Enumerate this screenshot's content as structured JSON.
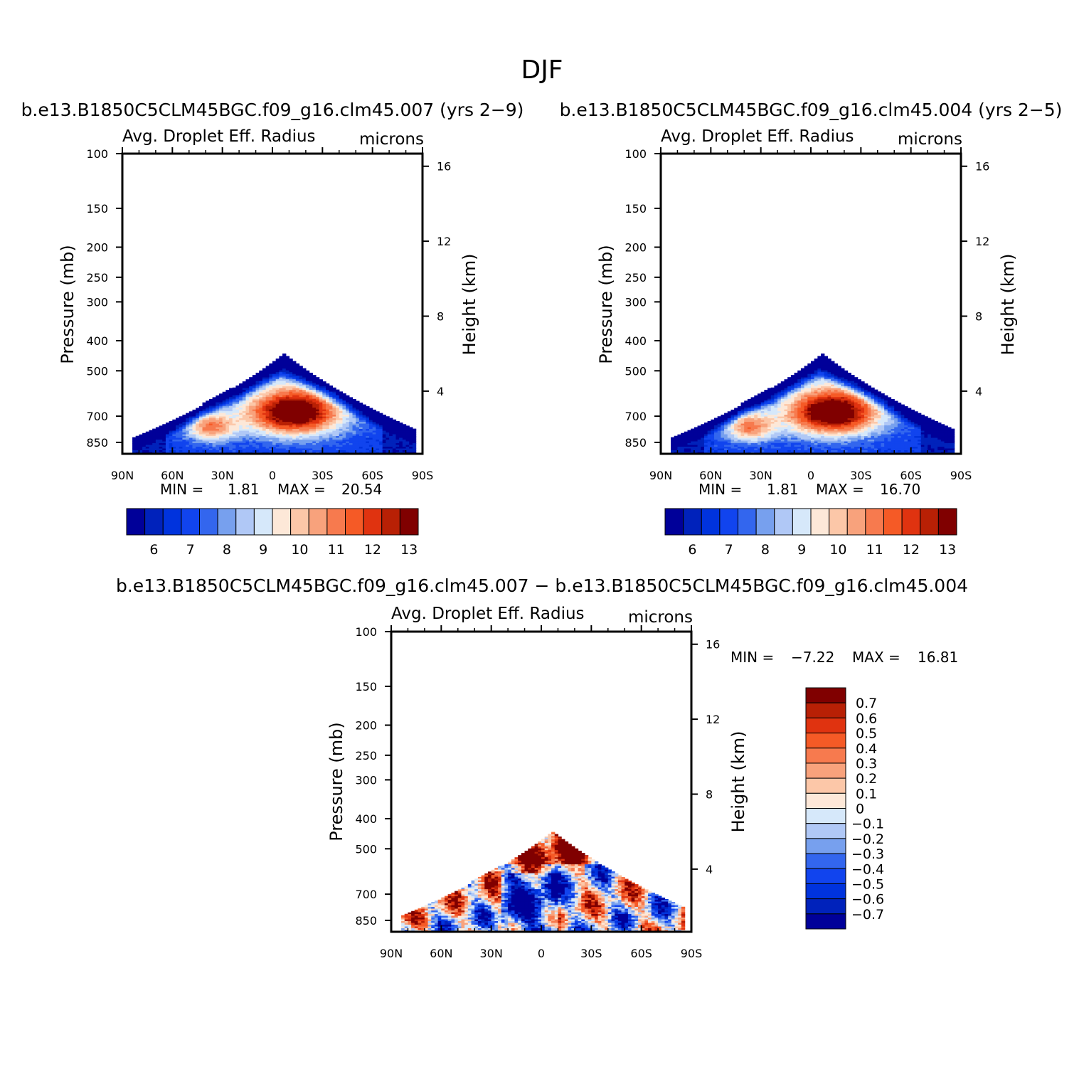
{
  "page_title": "DJF",
  "colors": {
    "abs_levels": [
      "#000099",
      "#0022bb",
      "#0033dd",
      "#1144ee",
      "#3366ee",
      "#77a0ee",
      "#b0c8f6",
      "#d6e8fa",
      "#fde8d8",
      "#fcc7a8",
      "#f8a27c",
      "#f77a4e",
      "#f55a26",
      "#e03310",
      "#b82005",
      "#800000"
    ],
    "diff_levels": [
      "#800000",
      "#b82005",
      "#e03310",
      "#f55a26",
      "#f77a4e",
      "#f8a27c",
      "#fcc7a8",
      "#fde8d8",
      "#d6e8fa",
      "#b0c8f6",
      "#77a0ee",
      "#3366ee",
      "#1144ee",
      "#0033dd",
      "#0022bb",
      "#000099"
    ]
  },
  "chart_data": [
    {
      "type": "heatmap",
      "title": "b.e13.B1850C5CLM45BGC.f09_g16.clm45.007 (yrs 2−9)",
      "subtitle_left": "Avg. Droplet Eff. Radius",
      "subtitle_right": "microns",
      "ylabel": "Pressure (mb)",
      "ylabel_right": "Height (km)",
      "x_ticks": [
        "90N",
        "60N",
        "30N",
        "0",
        "30S",
        "60S",
        "90S"
      ],
      "xlim": [
        90,
        -90
      ],
      "y_ticks": [
        100,
        150,
        200,
        250,
        300,
        400,
        500,
        700,
        850
      ],
      "ylim": [
        100,
        925
      ],
      "y_right_ticks": [
        4,
        8,
        12,
        16
      ],
      "stats": {
        "min_label": "MIN =",
        "min": "1.81",
        "max_label": "MAX =",
        "max": "20.54"
      },
      "colorbar_labels": [
        "6",
        "7",
        "8",
        "9",
        "10",
        "11",
        "12",
        "13"
      ],
      "approx_field": {
        "core_lat": -12,
        "core_p": 680,
        "core_value": 13.5,
        "top_p": 450
      }
    },
    {
      "type": "heatmap",
      "title": "b.e13.B1850C5CLM45BGC.f09_g16.clm45.004 (yrs 2−5)",
      "subtitle_left": "Avg. Droplet Eff. Radius",
      "subtitle_right": "microns",
      "ylabel": "Pressure (mb)",
      "ylabel_right": "Height (km)",
      "x_ticks": [
        "90N",
        "60N",
        "30N",
        "0",
        "30S",
        "60S",
        "90S"
      ],
      "xlim": [
        90,
        -90
      ],
      "y_ticks": [
        100,
        150,
        200,
        250,
        300,
        400,
        500,
        700,
        850
      ],
      "ylim": [
        100,
        925
      ],
      "y_right_ticks": [
        4,
        8,
        12,
        16
      ],
      "stats": {
        "min_label": "MIN =",
        "min": "1.81",
        "max_label": "MAX =",
        "max": "16.70"
      },
      "colorbar_labels": [
        "6",
        "7",
        "8",
        "9",
        "10",
        "11",
        "12",
        "13"
      ],
      "approx_field": {
        "core_lat": -12,
        "core_p": 680,
        "core_value": 13.5,
        "top_p": 450
      }
    },
    {
      "type": "heatmap",
      "title": "b.e13.B1850C5CLM45BGC.f09_g16.clm45.007 − b.e13.B1850C5CLM45BGC.f09_g16.clm45.004",
      "subtitle_left": "Avg. Droplet Eff. Radius",
      "subtitle_right": "microns",
      "ylabel": "Pressure (mb)",
      "ylabel_right": "Height (km)",
      "x_ticks": [
        "90N",
        "60N",
        "30N",
        "0",
        "30S",
        "60S",
        "90S"
      ],
      "xlim": [
        90,
        -90
      ],
      "y_ticks": [
        100,
        150,
        200,
        250,
        300,
        400,
        500,
        700,
        850
      ],
      "ylim": [
        100,
        925
      ],
      "y_right_ticks": [
        4,
        8,
        12,
        16
      ],
      "stats": {
        "min_label": "MIN =",
        "min": "−7.22",
        "max_label": "MAX =",
        "max": "16.81"
      },
      "colorbar_labels": [
        "0.7",
        "0.6",
        "0.5",
        "0.4",
        "0.3",
        "0.2",
        "0.1",
        "0",
        "−0.1",
        "−0.2",
        "−0.3",
        "−0.4",
        "−0.5",
        "−0.6",
        "−0.7"
      ],
      "approx_field": {
        "top_p": 450,
        "range": [
          -0.8,
          0.8
        ]
      }
    }
  ]
}
